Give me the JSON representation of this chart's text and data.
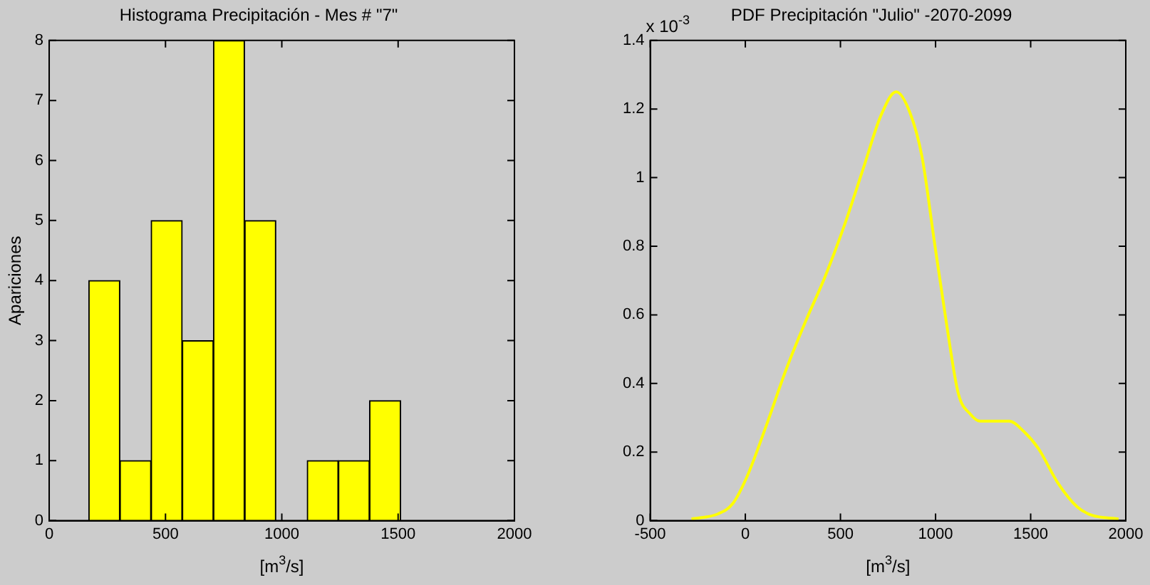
{
  "chart_data": [
    {
      "type": "histogram",
      "title": "Histograma Precipitación - Mes # \"7\"",
      "xlabel": "[m$^{3}$/s]",
      "ylabel": "Apariciones",
      "color": "#ffff00",
      "bins": [
        170,
        304,
        438,
        572,
        706,
        840,
        975,
        1109,
        1243,
        1377,
        1511
      ],
      "values": [
        4,
        1,
        5,
        3,
        8,
        5,
        0,
        1,
        1,
        2
      ],
      "xlim": [
        0,
        2000
      ],
      "xticks": [
        0,
        500,
        1000,
        1500,
        2000
      ],
      "ylim": [
        0,
        8
      ],
      "yticks": [
        0,
        1,
        2,
        3,
        4,
        5,
        6,
        7,
        8
      ]
    },
    {
      "type": "line",
      "title": "PDF Precipitación \"Julio\" -2070-2099",
      "xlabel": "[m$^{3}$/s]",
      "annotations": [
        "x 10$^{-3}$"
      ],
      "color": "#ffff00",
      "marker": "none",
      "x": [
        -283,
        -143,
        -66,
        10,
        112,
        214,
        316,
        418,
        520,
        622,
        712,
        793,
        865,
        929,
        992,
        1056,
        1120,
        1184,
        1235,
        1311,
        1388,
        1464,
        1541,
        1643,
        1745,
        1821,
        1962
      ],
      "values": [
        0.005,
        0.02,
        0.05,
        0.13,
        0.28,
        0.44,
        0.58,
        0.71,
        0.86,
        1.03,
        1.18,
        1.25,
        1.19,
        1.06,
        0.82,
        0.58,
        0.37,
        0.31,
        0.29,
        0.29,
        0.29,
        0.26,
        0.21,
        0.11,
        0.04,
        0.016,
        0.005
      ],
      "xlim": [
        -500,
        2000
      ],
      "xticks": [
        -500,
        0,
        500,
        1000,
        1500,
        2000
      ],
      "ylim": [
        0,
        1.4
      ],
      "yticks": [
        0,
        0.2,
        0.4,
        0.6,
        0.8,
        1,
        1.2,
        1.4
      ]
    }
  ]
}
